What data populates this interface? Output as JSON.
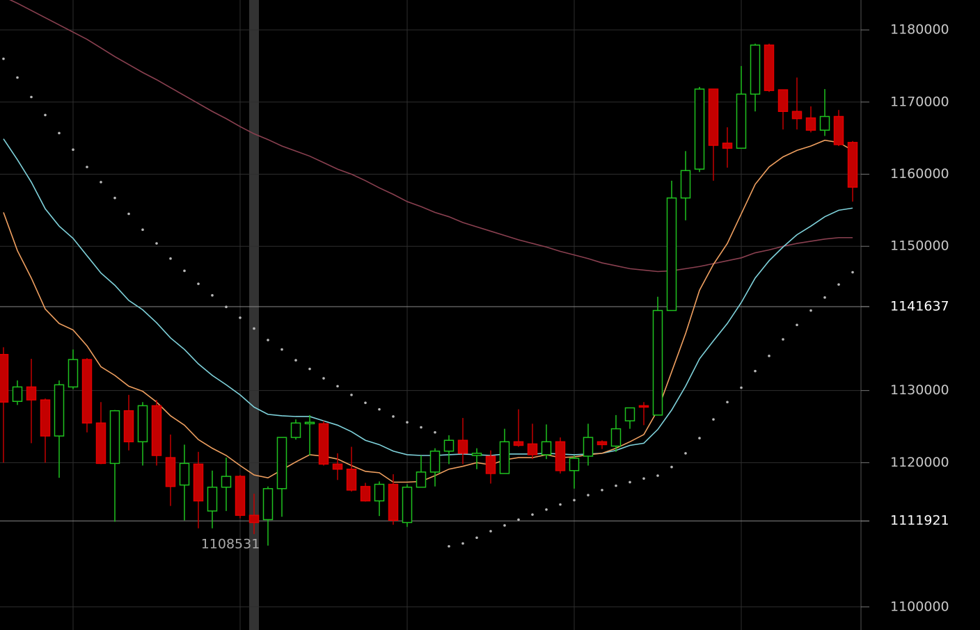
{
  "chart_data": {
    "type": "candlestick",
    "ylim": [
      1096800,
      1184150
    ],
    "yticks": [
      1100000,
      1120000,
      1130000,
      1150000,
      1160000,
      1170000,
      1180000
    ],
    "grid": true,
    "up_color": "#1fc21f",
    "down_color": "#c40000",
    "open": [
      1135000,
      1128500,
      1130500,
      1128700,
      1123700,
      1130500,
      1134300,
      1125500,
      1119900,
      1127200,
      1122900,
      1127900,
      1120700,
      1116900,
      1119800,
      1113300,
      1116600,
      1118100,
      1112700,
      1112100,
      1116400,
      1123500,
      1125400,
      1125400,
      1119800,
      1119100,
      1116700,
      1114700,
      1117000,
      1111700,
      1116600,
      1118700,
      1121600,
      1123100,
      1121000,
      1120900,
      1118500,
      1122900,
      1122600,
      1121100,
      1122900,
      1118900,
      1120900,
      1122900,
      1122300,
      1125800,
      1127900,
      1126600,
      1141100,
      1156700,
      1160700,
      1171800,
      1164300,
      1163600,
      1171100,
      1177900,
      1171700,
      1168700,
      1167800,
      1166100,
      1168000,
      1164400
    ],
    "high": [
      1136000,
      1131400,
      1134400,
      1128900,
      1131400,
      1135700,
      1134500,
      1128400,
      1127300,
      1129400,
      1128400,
      1128700,
      1123900,
      1122500,
      1121500,
      1118900,
      1120700,
      1118300,
      1115700,
      1116700,
      1123500,
      1126000,
      1126600,
      1125800,
      1121300,
      1122200,
      1117200,
      1117400,
      1118400,
      1117000,
      1121000,
      1122000,
      1123800,
      1126200,
      1122000,
      1121700,
      1124700,
      1127400,
      1125400,
      1125300,
      1123500,
      1121000,
      1125400,
      1123100,
      1126600,
      1127600,
      1128400,
      1143000,
      1159100,
      1163200,
      1172100,
      1171800,
      1166500,
      1175000,
      1178100,
      1178100,
      1171700,
      1173400,
      1169400,
      1171800,
      1168900,
      1164600
    ],
    "low": [
      1120000,
      1128000,
      1122700,
      1120000,
      1117900,
      1130200,
      1124200,
      1119800,
      1111800,
      1121700,
      1119600,
      1119600,
      1114000,
      1112000,
      1110900,
      1110900,
      1113300,
      1112300,
      1110100,
      1108500,
      1112500,
      1123200,
      1121000,
      1119600,
      1117600,
      1116000,
      1114600,
      1112600,
      1111400,
      1111100,
      1116600,
      1116700,
      1119800,
      1119800,
      1119100,
      1117100,
      1118500,
      1122200,
      1120500,
      1120500,
      1118500,
      1116400,
      1119600,
      1121900,
      1121500,
      1124700,
      1125200,
      1126600,
      1141100,
      1153600,
      1160300,
      1159100,
      1160900,
      1163600,
      1168700,
      1171400,
      1166200,
      1166200,
      1165800,
      1165300,
      1163900,
      1156200
    ],
    "close": [
      1128400,
      1130500,
      1128700,
      1123700,
      1130800,
      1134300,
      1125500,
      1119900,
      1127200,
      1122900,
      1127900,
      1121000,
      1116700,
      1119900,
      1114700,
      1116600,
      1118100,
      1112700,
      1111700,
      1116400,
      1123500,
      1125500,
      1125600,
      1119800,
      1119100,
      1116200,
      1114700,
      1117000,
      1112000,
      1116600,
      1118700,
      1121600,
      1123100,
      1121300,
      1121300,
      1118500,
      1122900,
      1122400,
      1121100,
      1122900,
      1118900,
      1120600,
      1123500,
      1122500,
      1124700,
      1127600,
      1127700,
      1141100,
      1156700,
      1160500,
      1171800,
      1164000,
      1163600,
      1171100,
      1177900,
      1171600,
      1168700,
      1167700,
      1166100,
      1168000,
      1164100,
      1158200
    ],
    "moving_averages": [
      {
        "color": "#8a4050",
        "values": [
          1184600,
          1183700,
          1182700,
          1181700,
          1180700,
          1179700,
          1178700,
          1177500,
          1176300,
          1175200,
          1174100,
          1173100,
          1172000,
          1170900,
          1169800,
          1168700,
          1167700,
          1166600,
          1165600,
          1164800,
          1163900,
          1163200,
          1162500,
          1161600,
          1160700,
          1160000,
          1159100,
          1158100,
          1157200,
          1156200,
          1155500,
          1154700,
          1154100,
          1153300,
          1152700,
          1152100,
          1151500,
          1150900,
          1150400,
          1149900,
          1149300,
          1148800,
          1148300,
          1147700,
          1147300,
          1146900,
          1146700,
          1146500,
          1146600,
          1146900,
          1147200,
          1147600,
          1148000,
          1148400,
          1149100,
          1149500,
          1150000,
          1150400,
          1150700,
          1151000,
          1151200,
          1151200
        ]
      },
      {
        "color": "#7fd3dc",
        "values": [
          1164900,
          1162000,
          1158900,
          1155200,
          1152800,
          1151100,
          1148700,
          1146300,
          1144600,
          1142500,
          1141200,
          1139400,
          1137300,
          1135700,
          1133700,
          1132100,
          1130800,
          1129400,
          1127700,
          1126700,
          1126500,
          1126400,
          1126400,
          1125800,
          1125200,
          1124300,
          1123100,
          1122500,
          1121600,
          1121100,
          1121000,
          1121000,
          1121100,
          1121200,
          1121100,
          1121000,
          1121200,
          1121200,
          1121200,
          1121300,
          1121200,
          1121100,
          1121200,
          1121300,
          1121700,
          1122400,
          1122700,
          1124600,
          1127300,
          1130600,
          1134400,
          1136900,
          1139300,
          1142200,
          1145600,
          1148000,
          1149900,
          1151600,
          1152800,
          1154100,
          1155000,
          1155300
        ]
      },
      {
        "color": "#f0a060",
        "values": [
          1154700,
          1149400,
          1145600,
          1141300,
          1139300,
          1138400,
          1136200,
          1133300,
          1132100,
          1130600,
          1129900,
          1128400,
          1126500,
          1125200,
          1123200,
          1122000,
          1121000,
          1119600,
          1118300,
          1117900,
          1119000,
          1120100,
          1121100,
          1120900,
          1120500,
          1119600,
          1118800,
          1118600,
          1117300,
          1117300,
          1117400,
          1118200,
          1119100,
          1119500,
          1120000,
          1119700,
          1120400,
          1120700,
          1120700,
          1121100,
          1120700,
          1120800,
          1121100,
          1121300,
          1122000,
          1122900,
          1123900,
          1127300,
          1132600,
          1137900,
          1143900,
          1147500,
          1150400,
          1154500,
          1158600,
          1161000,
          1162400,
          1163300,
          1163900,
          1164700,
          1164400,
          1163300
        ]
      }
    ],
    "sar": {
      "color": "#b8b8b8",
      "values": [
        1176000,
        1173400,
        1170700,
        1168200,
        1165700,
        1163400,
        1161000,
        1158900,
        1156700,
        1154500,
        1152300,
        1150400,
        1148300,
        1146600,
        1144800,
        1143200,
        1141600,
        1140100,
        1138600,
        1137000,
        1135700,
        1134200,
        1133000,
        1131700,
        1130600,
        1129400,
        1128300,
        1127400,
        1126400,
        1125600,
        1124900,
        1124200,
        1108400,
        1108800,
        1109600,
        1110500,
        1111300,
        1112100,
        1112800,
        1113500,
        1114200,
        1114800,
        1115500,
        1116200,
        1116800,
        1117300,
        1117800,
        1118200,
        1119400,
        1121300,
        1123400,
        1126000,
        1128400,
        1130400,
        1132700,
        1134800,
        1137100,
        1139100,
        1141100,
        1142900,
        1144700,
        1146400
      ]
    },
    "price_lines": [
      1141637,
      1111921
    ],
    "low_label": 1108531
  }
}
